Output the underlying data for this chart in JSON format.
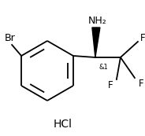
{
  "background_color": "#ffffff",
  "line_color": "#000000",
  "text_color": "#000000",
  "font_size": 8.5,
  "figsize": [
    1.84,
    1.73
  ],
  "dpi": 100,
  "br_label": "Br",
  "nh2_label": "NH₂",
  "hcl_label": "HCl",
  "stereo_label": "&1"
}
